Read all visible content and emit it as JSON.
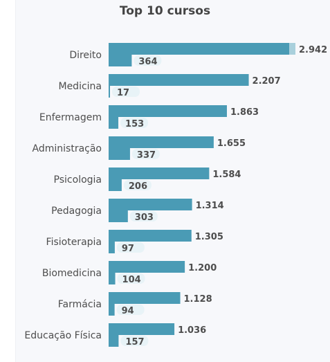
{
  "chart_data": {
    "type": "bar",
    "title": "Top 10 cursos",
    "orientation": "horizontal",
    "categories": [
      "Direito",
      "Medicina",
      "Enfermagem",
      "Administração",
      "Psicologia",
      "Pedagogia",
      "Fisioterapia",
      "Biomedicina",
      "Farmácia",
      "Educação Física"
    ],
    "series": [
      {
        "values": [
          2942,
          2207,
          1863,
          1655,
          1584,
          1314,
          1305,
          1200,
          1128,
          1036
        ],
        "labels": [
          "2.942",
          "2.207",
          "1.863",
          "1.655",
          "1.584",
          "1.314",
          "1.305",
          "1.200",
          "1.128",
          "1.036"
        ]
      },
      {
        "values": [
          364,
          17,
          153,
          337,
          206,
          303,
          97,
          104,
          94,
          157
        ],
        "labels": [
          "364",
          "17",
          "153",
          "337",
          "206",
          "303",
          "97",
          "104",
          "94",
          "157"
        ]
      }
    ],
    "colors": {
      "bar": "#4a9bb5",
      "bar_highlight": "#a9d0dc",
      "label_bg": "#e8f3f7"
    },
    "xlim": [
      0,
      2942
    ],
    "legend": "none",
    "grid": false
  }
}
